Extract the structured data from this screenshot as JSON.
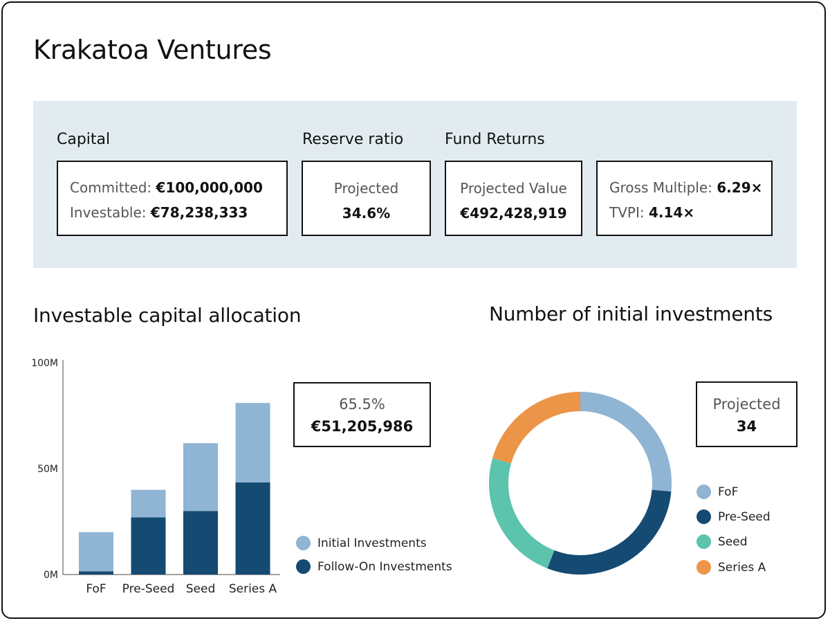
{
  "app_title": "Krakatoa Ventures",
  "summary": {
    "capital": {
      "label": "Capital",
      "committed_label": "Committed:",
      "committed_value": "€100,000,000",
      "investable_label": "Investable:",
      "investable_value": "€78,238,333"
    },
    "reserve_ratio": {
      "label": "Reserve ratio",
      "caption": "Projected",
      "value": "34.6%"
    },
    "fund_returns": {
      "label": "Fund Returns",
      "projected_value_label": "Projected Value",
      "projected_value": "€492,428,919",
      "gross_multiple_label": "Gross Multiple:",
      "gross_multiple": "6.29×",
      "tvpi_label": "TVPI:",
      "tvpi": "4.14×"
    }
  },
  "allocation_box": {
    "percent": "65.5%",
    "amount": "€51,205,986"
  },
  "investments_box": {
    "caption": "Projected",
    "value": "34"
  },
  "colors": {
    "initial": "#8fb4d4",
    "follow_on": "#154a72",
    "fof": "#8fb4d4",
    "pre_seed": "#154a72",
    "seed": "#5cc3ad",
    "series_a": "#ec9447"
  },
  "chart_data": [
    {
      "type": "bar",
      "stacked": true,
      "title": "Investable capital allocation",
      "categories": [
        "FoF",
        "Pre-Seed",
        "Seed",
        "Series A"
      ],
      "series": [
        {
          "name": "Follow-On Investments",
          "values": [
            1.5,
            27,
            30,
            43.5
          ],
          "color": "#154a72"
        },
        {
          "name": "Initial Investments",
          "values": [
            18.5,
            13,
            32,
            37.5
          ],
          "color": "#8fb4d4"
        }
      ],
      "yticks": [
        "0M",
        "50M",
        "100M"
      ],
      "ylim": [
        0,
        100
      ],
      "legend": [
        "Initial Investments",
        "Follow-On Investments"
      ]
    },
    {
      "type": "pie",
      "donut": true,
      "title": "Number of initial investments",
      "labels": [
        "FoF",
        "Pre-Seed",
        "Seed",
        "Series A"
      ],
      "values": [
        9,
        10,
        8,
        7
      ],
      "colors": [
        "#8fb4d4",
        "#154a72",
        "#5cc3ad",
        "#ec9447"
      ]
    }
  ]
}
